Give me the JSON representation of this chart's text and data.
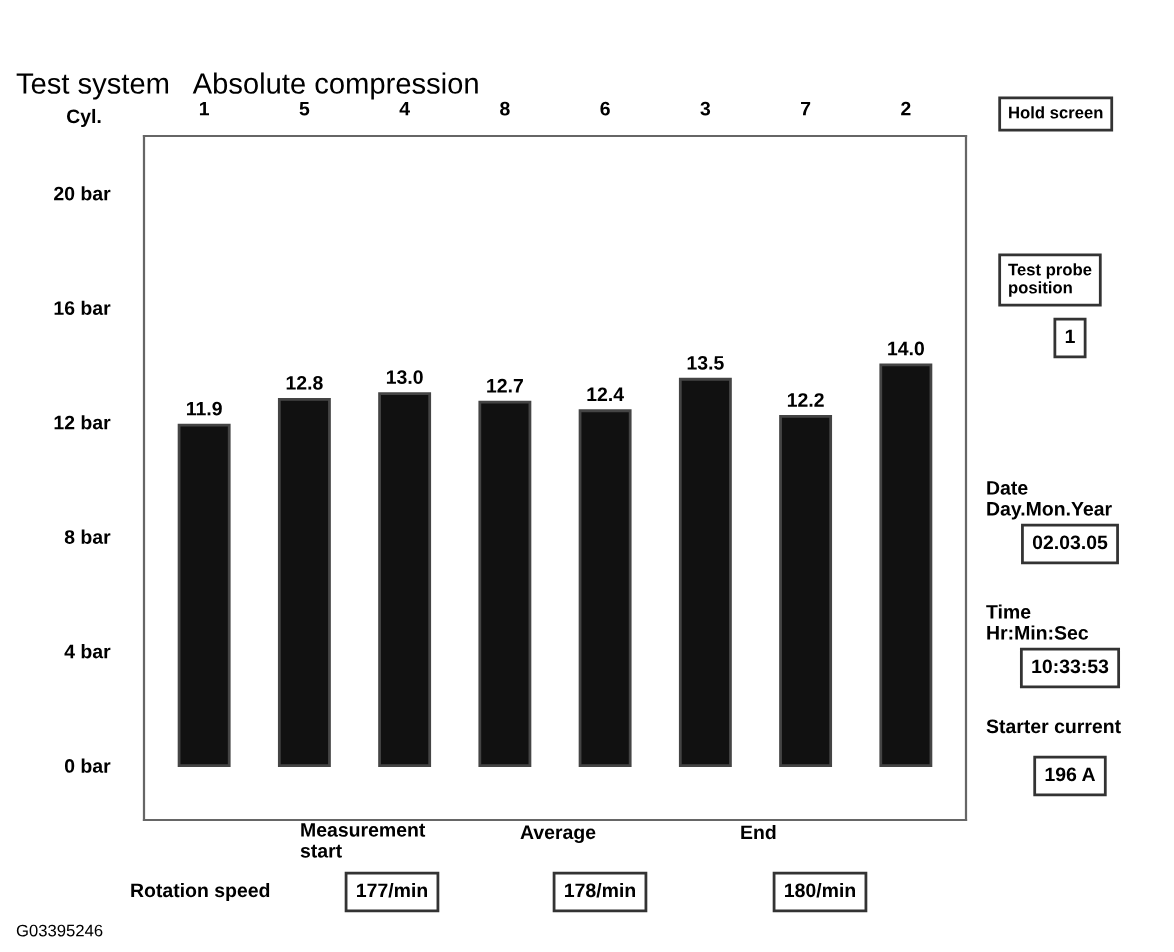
{
  "chart_data": {
    "type": "bar",
    "title": "Test system   Absolute compression",
    "xlabel": "Cyl.",
    "categories": [
      "1",
      "5",
      "4",
      "8",
      "6",
      "3",
      "7",
      "2"
    ],
    "values": [
      11.9,
      12.8,
      13.0,
      12.7,
      12.4,
      13.5,
      12.2,
      14.0
    ],
    "value_labels": [
      "11.9",
      "12.8",
      "13.0",
      "12.7",
      "12.4",
      "13.5",
      "12.2",
      "14.0"
    ],
    "color": "#111111",
    "grid": false,
    "ylim": [
      -1.9,
      22
    ],
    "yticks": [
      {
        "value": 0,
        "label": "0 bar"
      },
      {
        "value": 4,
        "label": "4 bar"
      },
      {
        "value": 8,
        "label": "8 bar"
      },
      {
        "value": 12,
        "label": "12 bar"
      },
      {
        "value": 16,
        "label": "16 bar"
      },
      {
        "value": 20,
        "label": "20 bar"
      }
    ],
    "annotations": [
      "Hold screen",
      "Test probe\nposition",
      "1",
      "Date\nDay.Mon.Year",
      "02.03.05",
      "Time\nHr:Min:Sec",
      "10:33:53",
      "Starter current",
      "196 A",
      "Measurement\nstart",
      "Average",
      "End",
      "Rotation speed",
      "177/min",
      "178/min",
      "180/min",
      "G03395246"
    ]
  }
}
